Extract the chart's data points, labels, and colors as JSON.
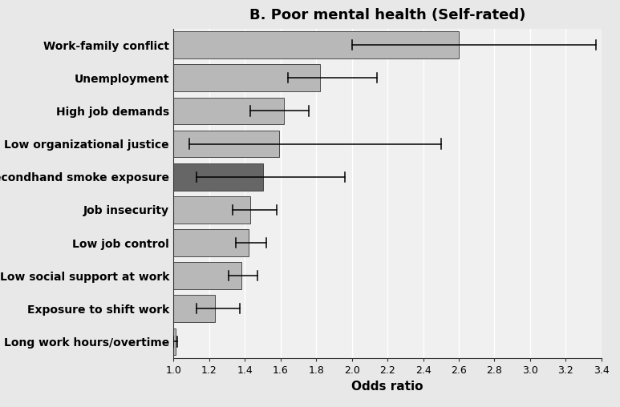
{
  "title": "B. Poor mental health (Self-rated)",
  "xlabel": "Odds ratio",
  "categories": [
    "Long work hours/overtime",
    "Exposure to shift work",
    "Low social support at work",
    "Low job control",
    "Job insecurity",
    "Secondhand smoke exposure",
    "Low organizational justice",
    "High job demands",
    "Unemployment",
    "Work-family conflict"
  ],
  "values": [
    1.01,
    1.23,
    1.38,
    1.42,
    1.43,
    1.5,
    1.59,
    1.62,
    1.82,
    2.6
  ],
  "ci_lower": [
    1.0,
    1.13,
    1.31,
    1.35,
    1.33,
    1.13,
    1.09,
    1.43,
    1.64,
    2.0
  ],
  "ci_upper": [
    1.02,
    1.37,
    1.47,
    1.52,
    1.58,
    1.96,
    2.5,
    1.76,
    2.14,
    3.37
  ],
  "bar_colors": [
    "#b8b8b8",
    "#b8b8b8",
    "#b8b8b8",
    "#b8b8b8",
    "#b8b8b8",
    "#666666",
    "#b8b8b8",
    "#b8b8b8",
    "#b8b8b8",
    "#b8b8b8"
  ],
  "xlim": [
    1.0,
    3.4
  ],
  "xticks": [
    1.0,
    1.2,
    1.4,
    1.6,
    1.8,
    2.0,
    2.2,
    2.4,
    2.6,
    2.8,
    3.0,
    3.2,
    3.4
  ],
  "label_area_color": "#e8e8e8",
  "plot_area_color": "#f0f0f0",
  "grid_color": "#ffffff",
  "title_fontsize": 13,
  "label_fontsize": 10,
  "tick_fontsize": 9
}
